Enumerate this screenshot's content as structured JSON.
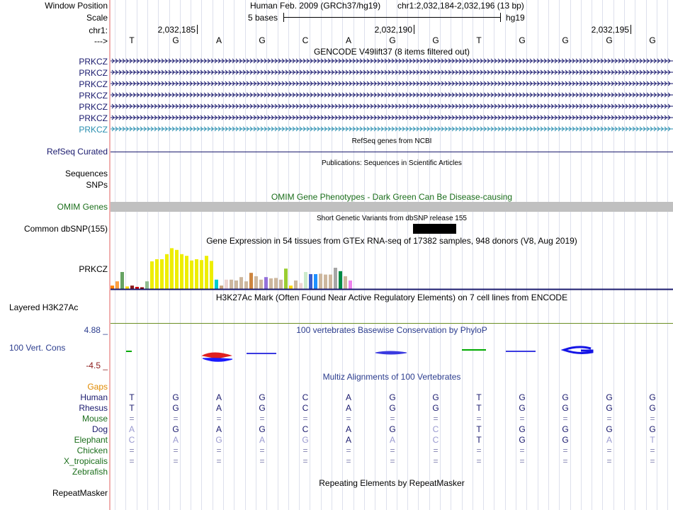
{
  "header": {
    "window_position_label": "Window Position",
    "scale_label": "Scale",
    "chrom_label": "chr1:",
    "strand_label": "--->",
    "assembly_text": "Human Feb. 2009 (GRCh37/hg19)",
    "position_text": "chr1:2,032,184-2,032,196 (13 bp)",
    "scale_bar_label": "5 bases",
    "db_label": "hg19",
    "coordinates": [
      {
        "label": "2,032,185",
        "base_index": 1
      },
      {
        "label": "2,032,190",
        "base_index": 6
      },
      {
        "label": "2,032,195",
        "base_index": 11
      }
    ]
  },
  "sequence": [
    "T",
    "G",
    "A",
    "G",
    "C",
    "A",
    "G",
    "G",
    "T",
    "G",
    "G",
    "G",
    "G"
  ],
  "gencode": {
    "title": "GENCODE V49lift37 (8 items filtered out)",
    "transcripts": [
      {
        "label": "PRKCZ",
        "color": "#1a1a6e"
      },
      {
        "label": "PRKCZ",
        "color": "#1a1a6e"
      },
      {
        "label": "PRKCZ",
        "color": "#1a1a6e"
      },
      {
        "label": "PRKCZ",
        "color": "#1a1a6e"
      },
      {
        "label": "PRKCZ",
        "color": "#1a1a6e"
      },
      {
        "label": "PRKCZ",
        "color": "#1a1a6e"
      },
      {
        "label": "PRKCZ",
        "color": "#2a8fb0"
      }
    ]
  },
  "refseq": {
    "title": "RefSeq genes from NCBI",
    "label": "RefSeq Curated",
    "color": "#1a1a6e"
  },
  "publications": {
    "title": "Publications: Sequences in Scientific Articles",
    "label_sequences": "Sequences",
    "label_snps": "SNPs"
  },
  "omim": {
    "title": "OMIM Gene Phenotypes - Dark Green Can Be Disease-causing",
    "label": "OMIM Genes",
    "color": "#1b6e1b",
    "bar_color": "#c0c0c0"
  },
  "dbsnp": {
    "title": "Short Genetic Variants from dbSNP release 155",
    "label": "Common dbSNP(155)"
  },
  "gtex": {
    "title": "Gene Expression in 54 tissues from GTEx RNA-seq of 17382 samples, 948 donors (V8, Aug 2019)",
    "label": "PRKCZ",
    "bars": [
      {
        "value": 8,
        "color": "#ff7f00"
      },
      {
        "value": 18,
        "color": "#ff9f40"
      },
      {
        "value": 40,
        "color": "#66a362"
      },
      {
        "value": 6,
        "color": "#ffd700"
      },
      {
        "value": 8,
        "color": "#8b1a1a"
      },
      {
        "value": 5,
        "color": "#cd0000"
      },
      {
        "value": 4,
        "color": "#8b0000"
      },
      {
        "value": 18,
        "color": "#8fbc8f"
      },
      {
        "value": 65,
        "color": "#eeee00"
      },
      {
        "value": 70,
        "color": "#eeee00"
      },
      {
        "value": 70,
        "color": "#eeee00"
      },
      {
        "value": 82,
        "color": "#eeee00"
      },
      {
        "value": 96,
        "color": "#eeee00"
      },
      {
        "value": 92,
        "color": "#eeee00"
      },
      {
        "value": 82,
        "color": "#eeee00"
      },
      {
        "value": 78,
        "color": "#eeee00"
      },
      {
        "value": 67,
        "color": "#eeee00"
      },
      {
        "value": 70,
        "color": "#eeee00"
      },
      {
        "value": 68,
        "color": "#eeee00"
      },
      {
        "value": 78,
        "color": "#eeee00"
      },
      {
        "value": 66,
        "color": "#eeee00"
      },
      {
        "value": 22,
        "color": "#00cdcd"
      },
      {
        "value": 8,
        "color": "#caa27a"
      },
      {
        "value": 22,
        "color": "#eed5d2"
      },
      {
        "value": 22,
        "color": "#cdb79e"
      },
      {
        "value": 20,
        "color": "#cdb79e"
      },
      {
        "value": 28,
        "color": "#cdb79e"
      },
      {
        "value": 18,
        "color": "#cdb79e"
      },
      {
        "value": 38,
        "color": "#cd853f"
      },
      {
        "value": 30,
        "color": "#cdb79e"
      },
      {
        "value": 22,
        "color": "#cdb79e"
      },
      {
        "value": 28,
        "color": "#9370db"
      },
      {
        "value": 25,
        "color": "#cdb79e"
      },
      {
        "value": 26,
        "color": "#cdb79e"
      },
      {
        "value": 22,
        "color": "#cdb79e"
      },
      {
        "value": 48,
        "color": "#9acd32"
      },
      {
        "value": 8,
        "color": "#ffd700"
      },
      {
        "value": 20,
        "color": "#cdb79e"
      },
      {
        "value": 14,
        "color": "#eed5d2"
      },
      {
        "value": 40,
        "color": "#ccebcc"
      },
      {
        "value": 35,
        "color": "#3a5fcd"
      },
      {
        "value": 35,
        "color": "#1e90ff"
      },
      {
        "value": 36,
        "color": "#cdb79e"
      },
      {
        "value": 34,
        "color": "#cdb79e"
      },
      {
        "value": 34,
        "color": "#cdb79e"
      },
      {
        "value": 50,
        "color": "#a6a6a6"
      },
      {
        "value": 42,
        "color": "#008b45"
      },
      {
        "value": 30,
        "color": "#cdb79e"
      },
      {
        "value": 20,
        "color": "#ee82ee"
      }
    ]
  },
  "h3k27ac": {
    "title": "H3K27Ac Mark (Often Found Near Active Regulatory Elements) on 7 cell lines from ENCODE",
    "label": "Layered H3K27Ac",
    "line_color": "#6b8e23"
  },
  "conservation": {
    "title": "100 vertebrates Basewise Conservation by PhyloP",
    "label": "100 Vert. Cons",
    "max_label": "4.88 _",
    "min_label": "-4.5 _",
    "color": "#2c3d8e",
    "min_color": "#8b1a1a"
  },
  "multiz": {
    "title": "Multiz Alignments of 100 Vertebrates",
    "gaps_label": "Gaps",
    "gaps_color": "#e08a00",
    "species": [
      {
        "label": "Human",
        "color": "#1a1a6e",
        "bases": [
          "T",
          "G",
          "A",
          "G",
          "C",
          "A",
          "G",
          "G",
          "T",
          "G",
          "G",
          "G",
          "G"
        ]
      },
      {
        "label": "Rhesus",
        "color": "#1a1a6e",
        "bases": [
          "T",
          "G",
          "A",
          "G",
          "C",
          "A",
          "G",
          "G",
          "T",
          "G",
          "G",
          "G",
          "G"
        ]
      },
      {
        "label": "Mouse",
        "color": "#1b6e1b",
        "bases": [
          "=",
          "=",
          "=",
          "=",
          "=",
          "=",
          "=",
          "=",
          "=",
          "=",
          "=",
          "=",
          "="
        ]
      },
      {
        "label": "Dog",
        "color": "#1a1a6e",
        "bases": [
          "A",
          "G",
          "A",
          "G",
          "C",
          "A",
          "G",
          "C",
          "T",
          "G",
          "G",
          "G",
          "G"
        ]
      },
      {
        "label": "Elephant",
        "color": "#1b6e1b",
        "bases": [
          "C",
          "A",
          "G",
          "A",
          "G",
          "A",
          "A",
          "C",
          "T",
          "G",
          "G",
          "A",
          "T"
        ]
      },
      {
        "label": "Chicken",
        "color": "#1b6e1b",
        "bases": [
          "=",
          "=",
          "=",
          "=",
          "=",
          "=",
          "=",
          "=",
          "=",
          "=",
          "=",
          "=",
          "="
        ]
      },
      {
        "label": "X_tropicalis",
        "color": "#1b6e1b",
        "bases": [
          "=",
          "=",
          "=",
          "=",
          "=",
          "=",
          "=",
          "=",
          "=",
          "=",
          "=",
          "=",
          "="
        ]
      },
      {
        "label": "Zebrafish",
        "color": "#1b6e1b",
        "bases": [
          "",
          "",
          "",
          "",
          "",
          "",
          "",
          "",
          "",
          "",
          "",
          "",
          ""
        ]
      }
    ]
  },
  "repeatmasker": {
    "title": "Repeating Elements by RepeatMasker",
    "label": "RepeatMasker"
  }
}
